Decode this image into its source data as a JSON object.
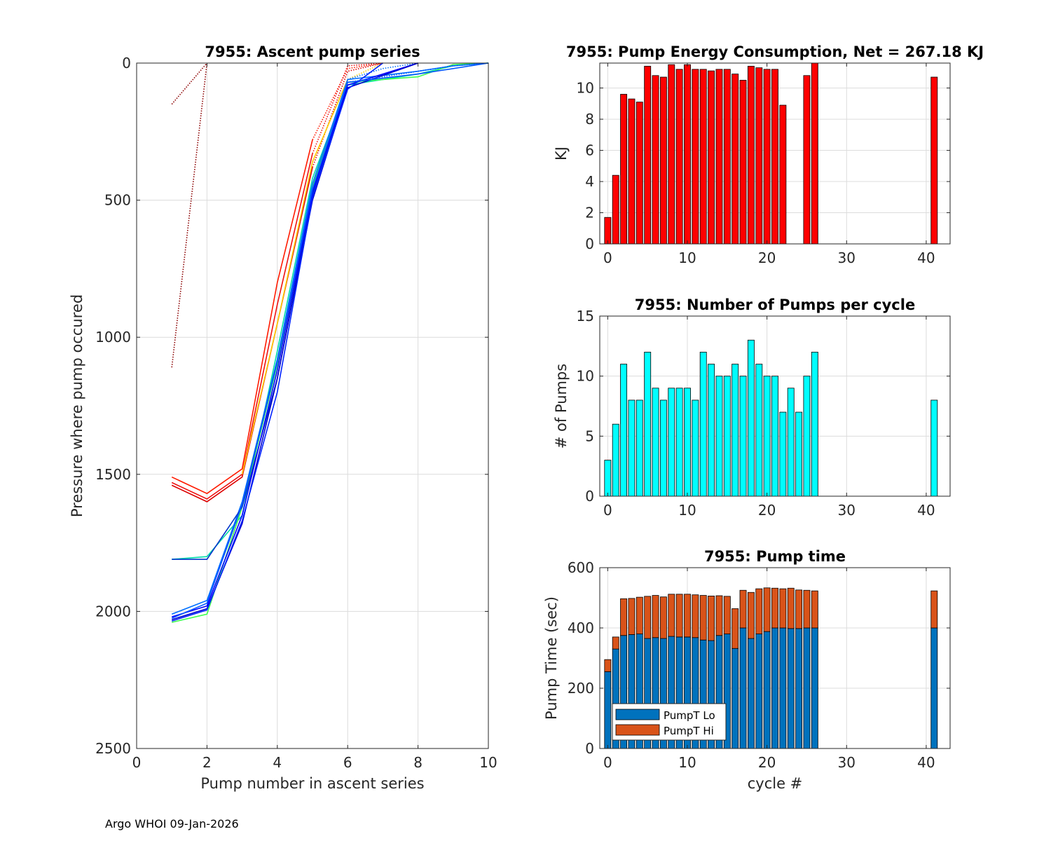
{
  "footer": "Argo WHOI 09-Jan-2026",
  "chart_data": [
    {
      "type": "line",
      "title": "7955: Ascent pump series",
      "xlabel": "Pump number in ascent series",
      "ylabel": "Pressure where pump occured",
      "xlim": [
        0,
        10
      ],
      "ylim": [
        0,
        2500
      ],
      "y_reversed": true,
      "xticks": [
        0,
        2,
        4,
        6,
        8,
        10
      ],
      "yticks": [
        0,
        500,
        1000,
        1500,
        2000,
        2500
      ],
      "grid": true,
      "series": [
        {
          "name": "c1",
          "color": "#8b0000",
          "style": "dotted",
          "x": [
            1,
            2
          ],
          "y": [
            1110,
            0
          ]
        },
        {
          "name": "c2",
          "color": "#8b0000",
          "style": "dotted",
          "x": [
            1,
            2
          ],
          "y": [
            150,
            0
          ]
        },
        {
          "name": "c3",
          "color": "#ff1a00",
          "style": "solid",
          "x": [
            1,
            2,
            3,
            4,
            5
          ],
          "y": [
            1510,
            1570,
            1480,
            800,
            280
          ]
        },
        {
          "name": "c3d",
          "color": "#ff1a00",
          "style": "dotted",
          "x": [
            5,
            6,
            7
          ],
          "y": [
            280,
            20,
            0
          ]
        },
        {
          "name": "c4",
          "color": "#ee1111",
          "style": "solid",
          "x": [
            1,
            2,
            3,
            4,
            5
          ],
          "y": [
            1530,
            1590,
            1500,
            880,
            330
          ]
        },
        {
          "name": "c4d",
          "color": "#ee1111",
          "style": "dotted",
          "x": [
            5,
            6,
            7
          ],
          "y": [
            330,
            10,
            0
          ]
        },
        {
          "name": "c5",
          "color": "#dd0000",
          "style": "solid",
          "x": [
            1,
            2,
            3,
            4,
            5
          ],
          "y": [
            1540,
            1600,
            1510,
            950,
            380
          ]
        },
        {
          "name": "c5d",
          "color": "#dd0000",
          "style": "dotted",
          "x": [
            5,
            6,
            7
          ],
          "y": [
            380,
            30,
            0
          ]
        },
        {
          "name": "c6",
          "color": "#ffcc00",
          "style": "solid",
          "x": [
            3,
            4,
            5,
            6
          ],
          "y": [
            1500,
            950,
            360,
            60
          ]
        },
        {
          "name": "c6d",
          "color": "#ffcc00",
          "style": "dotted",
          "x": [
            6,
            7
          ],
          "y": [
            60,
            0
          ]
        },
        {
          "name": "c7",
          "color": "#00ddaa",
          "style": "solid",
          "x": [
            1,
            2,
            3,
            4,
            5,
            6,
            8,
            9,
            10
          ],
          "y": [
            1810,
            1800,
            1650,
            1050,
            420,
            80,
            40,
            10,
            0
          ]
        },
        {
          "name": "c8",
          "color": "#3fff50",
          "style": "solid",
          "x": [
            1,
            2,
            3,
            4,
            5,
            6,
            8,
            9,
            10
          ],
          "y": [
            2040,
            2010,
            1620,
            1100,
            450,
            70,
            50,
            5,
            0
          ]
        },
        {
          "name": "c9",
          "color": "#0070ff",
          "style": "solid",
          "x": [
            1,
            2,
            3,
            4,
            5,
            6,
            8,
            9,
            10
          ],
          "y": [
            2010,
            1960,
            1600,
            1080,
            440,
            60,
            30,
            10,
            0
          ]
        },
        {
          "name": "c9d",
          "color": "#0070ff",
          "style": "dotted",
          "x": [
            6,
            7,
            8
          ],
          "y": [
            60,
            20,
            0
          ]
        },
        {
          "name": "c10",
          "color": "#0033cc",
          "style": "solid",
          "x": [
            1,
            2,
            3,
            4,
            5,
            6,
            8
          ],
          "y": [
            1810,
            1810,
            1620,
            1150,
            480,
            90,
            0
          ]
        },
        {
          "name": "c11",
          "color": "#0000ff",
          "style": "solid",
          "x": [
            1,
            2,
            3,
            4,
            5,
            6,
            8
          ],
          "y": [
            2020,
            1980,
            1650,
            1120,
            470,
            80,
            0
          ]
        },
        {
          "name": "c12",
          "color": "#0000cc",
          "style": "solid",
          "x": [
            1,
            2,
            3,
            4,
            5,
            6,
            8
          ],
          "y": [
            2030,
            1990,
            1680,
            1150,
            500,
            90,
            0
          ]
        },
        {
          "name": "c13",
          "color": "#0022ff",
          "style": "solid",
          "x": [
            1,
            2,
            3,
            4,
            5,
            6,
            7
          ],
          "y": [
            2035,
            1995,
            1670,
            1200,
            490,
            95,
            0
          ]
        },
        {
          "name": "c14",
          "color": "#0055ff",
          "style": "solid",
          "x": [
            1,
            2,
            3,
            4,
            5,
            6,
            8,
            10
          ],
          "y": [
            2025,
            1970,
            1610,
            1090,
            460,
            70,
            40,
            0
          ]
        },
        {
          "name": "c14d",
          "color": "#0055ff",
          "style": "dotted",
          "x": [
            6,
            8,
            9,
            10
          ],
          "y": [
            70,
            30,
            10,
            0
          ]
        }
      ]
    },
    {
      "type": "bar",
      "title": "7955: Pump Energy Consumption,  Net = 267.18 KJ",
      "xlabel": "",
      "ylabel": "KJ",
      "xlim": [
        -1,
        43
      ],
      "ylim": [
        0,
        11.6
      ],
      "xticks": [
        0,
        10,
        20,
        30,
        40
      ],
      "yticks": [
        0,
        2,
        4,
        6,
        8,
        10
      ],
      "grid": true,
      "color": "#ff0000",
      "x": [
        0,
        1,
        2,
        3,
        4,
        5,
        6,
        7,
        8,
        9,
        10,
        11,
        12,
        13,
        14,
        15,
        16,
        17,
        18,
        19,
        20,
        21,
        22,
        25,
        26,
        41
      ],
      "values": [
        1.7,
        4.4,
        9.6,
        9.3,
        9.1,
        11.4,
        10.8,
        10.7,
        11.5,
        11.2,
        11.5,
        11.2,
        11.2,
        11.1,
        11.2,
        11.2,
        10.9,
        10.5,
        11.4,
        11.3,
        11.2,
        11.2,
        8.9,
        10.8,
        11.6,
        10.7
      ]
    },
    {
      "type": "bar",
      "title": "7955: Number of Pumps per cycle",
      "xlabel": "",
      "ylabel": "# of Pumps",
      "xlim": [
        -1,
        43
      ],
      "ylim": [
        0,
        15
      ],
      "xticks": [
        0,
        10,
        20,
        30,
        40
      ],
      "yticks": [
        0,
        5,
        10,
        15
      ],
      "grid": true,
      "color": "#00ffff",
      "x": [
        0,
        1,
        2,
        3,
        4,
        5,
        6,
        7,
        8,
        9,
        10,
        11,
        12,
        13,
        14,
        15,
        16,
        17,
        18,
        19,
        20,
        21,
        22,
        23,
        24,
        25,
        26,
        41
      ],
      "values": [
        3,
        6,
        11,
        8,
        8,
        12,
        9,
        8,
        9,
        9,
        9,
        8,
        12,
        11,
        10,
        10,
        11,
        10,
        13,
        11,
        10,
        10,
        7,
        9,
        7,
        10,
        12,
        8
      ]
    },
    {
      "type": "bar",
      "stacked": true,
      "title": "7955: Pump time",
      "xlabel": "cycle #",
      "ylabel": "Pump Time (sec)",
      "xlim": [
        -1,
        43
      ],
      "ylim": [
        0,
        600
      ],
      "xticks": [
        0,
        10,
        20,
        30,
        40
      ],
      "yticks": [
        0,
        200,
        400,
        600
      ],
      "grid": true,
      "legend_position": "bottom-left",
      "x": [
        0,
        1,
        2,
        3,
        4,
        5,
        6,
        7,
        8,
        9,
        10,
        11,
        12,
        13,
        14,
        15,
        16,
        17,
        18,
        19,
        20,
        21,
        22,
        23,
        24,
        25,
        26,
        41
      ],
      "series": [
        {
          "name": "PumpT Lo",
          "color": "#0072bd",
          "values": [
            255,
            330,
            375,
            378,
            380,
            365,
            368,
            365,
            372,
            370,
            370,
            368,
            360,
            358,
            375,
            380,
            332,
            400,
            365,
            380,
            388,
            400,
            400,
            398,
            398,
            400,
            400,
            400
          ]
        },
        {
          "name": "PumpT Hi",
          "color": "#d95319",
          "values": [
            40,
            40,
            122,
            120,
            122,
            140,
            140,
            138,
            140,
            142,
            142,
            142,
            148,
            148,
            132,
            125,
            132,
            125,
            153,
            150,
            145,
            132,
            130,
            134,
            128,
            125,
            123,
            123
          ]
        }
      ]
    }
  ]
}
